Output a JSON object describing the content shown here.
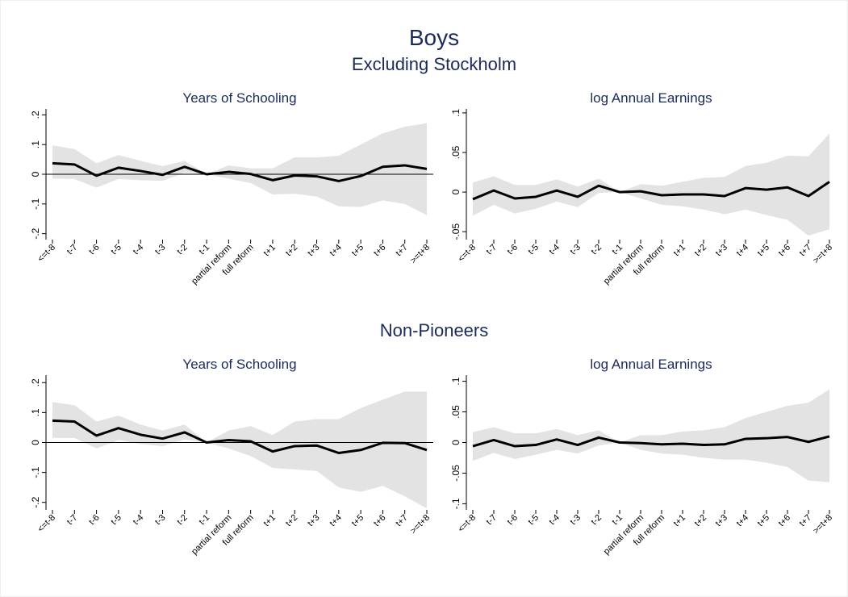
{
  "title": "Boys",
  "sections": [
    "Excluding Stockholm",
    "Non-Pioneers"
  ],
  "chart_data": [
    {
      "type": "line",
      "title": "Years of Schooling",
      "categories": [
        "<=t-8",
        "t-7",
        "t-6",
        "t-5",
        "t-4",
        "t-3",
        "t-2",
        "t-1",
        "partial reform",
        "full reform",
        "t+1",
        "t+2",
        "t+3",
        "t+4",
        "t+5",
        "t+6",
        "t+7",
        ">=t+8"
      ],
      "values": [
        0.037,
        0.033,
        -0.005,
        0.022,
        0.011,
        -0.002,
        0.025,
        0,
        0.008,
        0.001,
        -0.02,
        -0.004,
        -0.007,
        -0.023,
        -0.006,
        0.025,
        0.03,
        0.018
      ],
      "upper": [
        0.097,
        0.085,
        0.037,
        0.065,
        0.045,
        0.027,
        0.045,
        0,
        0.03,
        0.02,
        0.02,
        0.057,
        0.057,
        0.062,
        0.1,
        0.138,
        0.16,
        0.172
      ],
      "lower": [
        -0.015,
        -0.016,
        -0.045,
        -0.016,
        -0.02,
        -0.022,
        0.005,
        0,
        -0.015,
        -0.03,
        -0.068,
        -0.066,
        -0.075,
        -0.108,
        -0.11,
        -0.088,
        -0.1,
        -0.138
      ],
      "color": "#000000",
      "band_color": "#e3e3e3",
      "yline": 0,
      "ylim": [
        -0.22,
        0.22
      ],
      "yticks": [
        {
          "value": -0.2,
          "label": "-.2"
        },
        {
          "value": -0.1,
          "label": "-.1"
        },
        0,
        {
          "value": 0.1,
          "label": ".1"
        },
        {
          "value": 0.2,
          "label": ".2"
        }
      ]
    },
    {
      "type": "line",
      "title": "log Annual Earnings",
      "categories": [
        "<=t-8",
        "t-7",
        "t-6",
        "t-5",
        "t-4",
        "t-3",
        "t-2",
        "t-1",
        "partial reform",
        "full reform",
        "t+1",
        "t+2",
        "t+3",
        "t+4",
        "t+5",
        "t+6",
        "t+7",
        ">=t+8"
      ],
      "values": [
        -0.009,
        0.002,
        -0.008,
        -0.006,
        0.002,
        -0.006,
        0.008,
        0,
        0.001,
        -0.004,
        -0.003,
        -0.003,
        -0.005,
        0.005,
        0.003,
        0.006,
        -0.005,
        0.013
      ],
      "upper": [
        0.012,
        0.02,
        0.009,
        0.009,
        0.016,
        0.007,
        0.017,
        0,
        0.01,
        0.008,
        0.013,
        0.018,
        0.019,
        0.033,
        0.037,
        0.046,
        0.045,
        0.074
      ],
      "lower": [
        -0.03,
        -0.016,
        -0.027,
        -0.021,
        -0.012,
        -0.019,
        -0.001,
        0,
        -0.008,
        -0.016,
        -0.018,
        -0.022,
        -0.028,
        -0.022,
        -0.029,
        -0.035,
        -0.055,
        -0.047
      ],
      "color": "#000000",
      "band_color": "#e3e3e3",
      "ylim": [
        -0.06,
        0.105
      ],
      "yticks": [
        {
          "value": -0.05,
          "label": "-.05"
        },
        0,
        {
          "value": 0.05,
          "label": ".05"
        },
        {
          "value": 0.1,
          "label": ".1"
        }
      ]
    },
    {
      "type": "line",
      "title": "Years of Schooling",
      "categories": [
        "<=t-8",
        "t-7",
        "t-6",
        "t-5",
        "t-4",
        "t-3",
        "t-2",
        "t-1",
        "partial reform",
        "full reform",
        "t+1",
        "t+2",
        "t+3",
        "t+4",
        "t+5",
        "t+6",
        "t+7",
        ">=t+8"
      ],
      "values": [
        0.073,
        0.07,
        0.023,
        0.048,
        0.026,
        0.013,
        0.034,
        0,
        0.008,
        0.004,
        -0.03,
        -0.012,
        -0.01,
        -0.035,
        -0.025,
        -0.001,
        -0.002,
        -0.025
      ],
      "upper": [
        0.135,
        0.125,
        0.07,
        0.09,
        0.06,
        0.04,
        0.06,
        0,
        0.04,
        0.055,
        0.025,
        0.07,
        0.078,
        0.078,
        0.115,
        0.143,
        0.17,
        0.17
      ],
      "lower": [
        0.015,
        0.015,
        -0.02,
        0.008,
        -0.005,
        -0.012,
        0.01,
        0,
        -0.02,
        -0.045,
        -0.085,
        -0.09,
        -0.095,
        -0.15,
        -0.165,
        -0.145,
        -0.18,
        -0.22
      ],
      "color": "#000000",
      "band_color": "#e3e3e3",
      "yline": 0,
      "ylim": [
        -0.225,
        0.225
      ],
      "yticks": [
        {
          "value": -0.2,
          "label": "-.2"
        },
        {
          "value": -0.1,
          "label": "-.1"
        },
        0,
        {
          "value": 0.1,
          "label": ".1"
        },
        {
          "value": 0.2,
          "label": ".2"
        }
      ]
    },
    {
      "type": "line",
      "title": "log Annual Earnings",
      "categories": [
        "<=t-8",
        "t-7",
        "t-6",
        "t-5",
        "t-4",
        "t-3",
        "t-2",
        "t-1",
        "partial reform",
        "full reform",
        "t+1",
        "t+2",
        "t+3",
        "t+4",
        "t+5",
        "t+6",
        "t+7",
        ">=t+8"
      ],
      "values": [
        -0.006,
        0.004,
        -0.006,
        -0.004,
        0.005,
        -0.004,
        0.008,
        0,
        -0.001,
        -0.003,
        -0.002,
        -0.004,
        -0.003,
        0.006,
        0.007,
        0.009,
        0.001,
        0.01
      ],
      "upper": [
        0.017,
        0.025,
        0.015,
        0.015,
        0.022,
        0.012,
        0.02,
        0,
        0.012,
        0.012,
        0.018,
        0.02,
        0.025,
        0.04,
        0.05,
        0.06,
        0.065,
        0.087
      ],
      "lower": [
        -0.03,
        -0.017,
        -0.027,
        -0.02,
        -0.012,
        -0.018,
        -0.005,
        0,
        -0.012,
        -0.018,
        -0.02,
        -0.025,
        -0.028,
        -0.028,
        -0.033,
        -0.04,
        -0.062,
        -0.065
      ],
      "color": "#000000",
      "band_color": "#e3e3e3",
      "ylim": [
        -0.11,
        0.11
      ],
      "yticks": [
        {
          "value": -0.1,
          "label": "-.1"
        },
        {
          "value": -0.05,
          "label": "-.05"
        },
        0,
        {
          "value": 0.05,
          "label": ".05"
        },
        {
          "value": 0.1,
          "label": ".1"
        }
      ]
    }
  ]
}
